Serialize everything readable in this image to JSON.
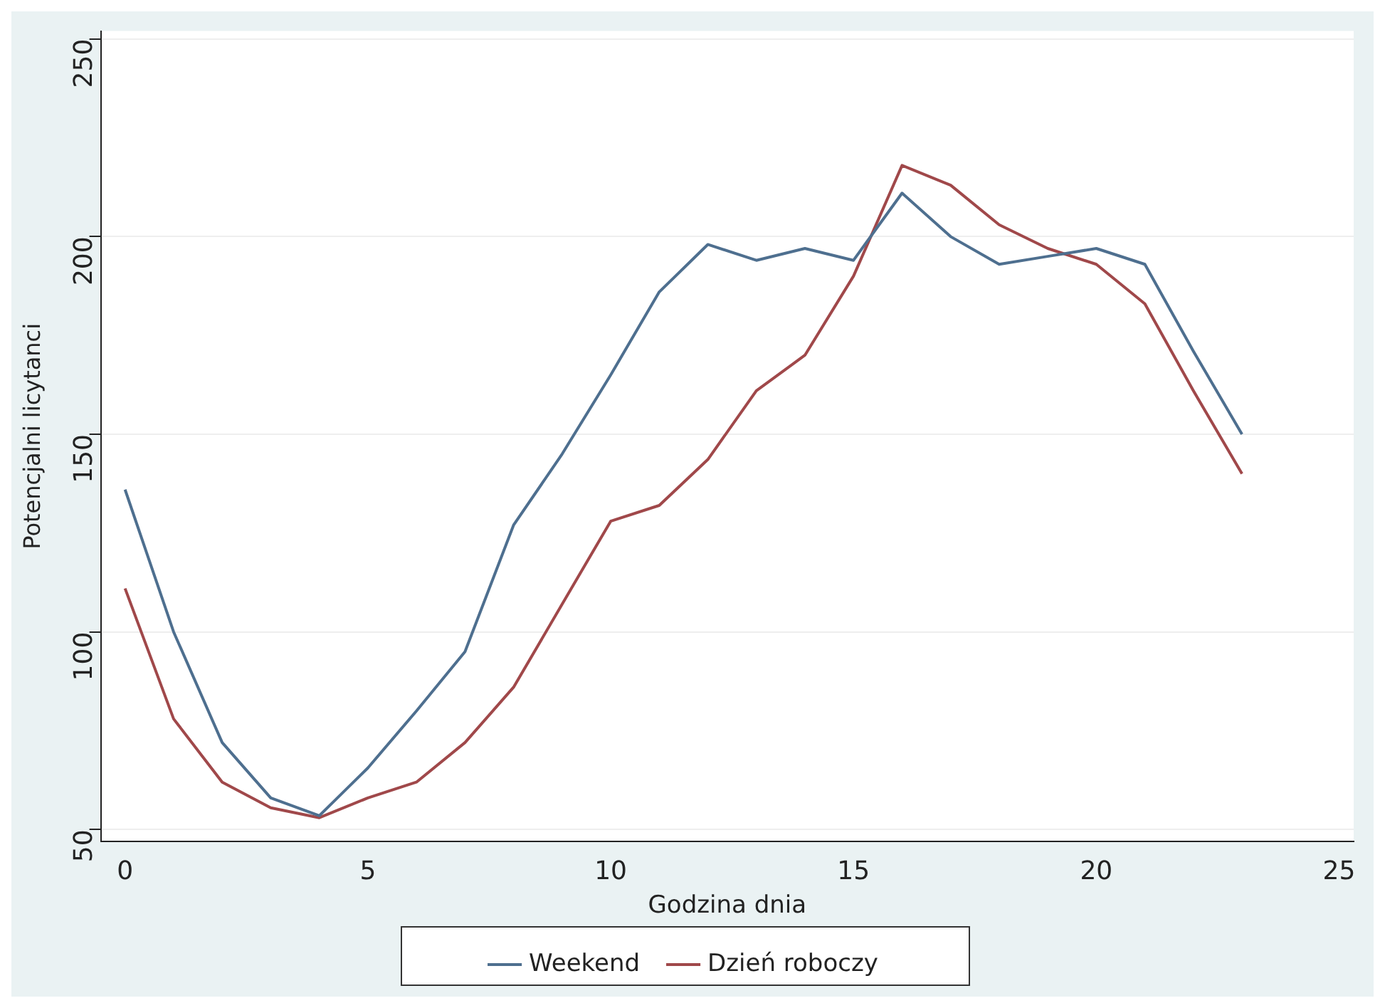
{
  "chart_data": {
    "type": "line",
    "xlabel": "Godzina dnia",
    "ylabel": "Potencjalni licytanci",
    "x": [
      0,
      1,
      2,
      3,
      4,
      5,
      6,
      7,
      8,
      9,
      10,
      11,
      12,
      13,
      14,
      15,
      16,
      17,
      18,
      19,
      20,
      21,
      22,
      23
    ],
    "series": [
      {
        "name": "Weekend",
        "color": "#4e6f8f",
        "values": [
          136,
          100,
          72,
          58,
          53.5,
          65.6,
          80,
          95,
          127,
          145,
          165,
          186,
          198,
          194,
          197,
          194,
          211,
          200,
          193,
          195,
          197,
          193,
          171,
          150
        ]
      },
      {
        "name": "Dzień roboczy",
        "color": "#a0484a",
        "values": [
          111,
          78,
          62,
          55.5,
          53,
          58,
          62,
          72,
          86,
          107,
          128,
          132,
          143.6,
          161,
          170,
          190,
          218,
          213,
          203,
          197,
          193,
          183,
          161,
          140
        ]
      }
    ],
    "xlim": [
      -0.5,
      25.3
    ],
    "xticks": [
      0,
      5,
      10,
      15,
      20,
      25
    ],
    "ylim": [
      47,
      252
    ],
    "yticks": [
      50,
      100,
      150,
      200,
      250
    ],
    "grid": "y",
    "legend": "bottom",
    "marker": "none",
    "line_style": "solid"
  }
}
